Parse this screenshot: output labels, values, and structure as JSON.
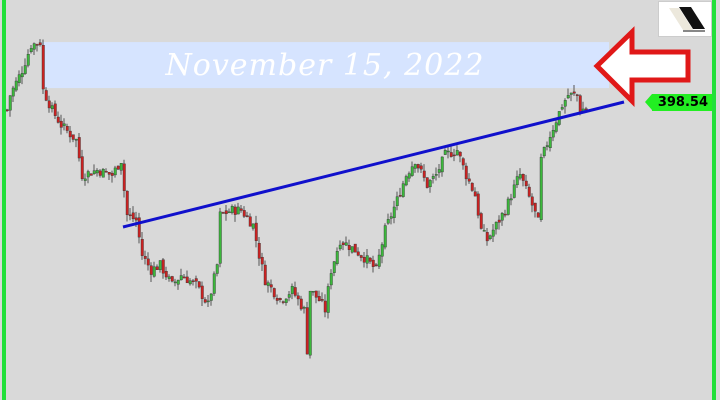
{
  "price_label": "398.54",
  "annotation_text": "November 15, 2022",
  "colors": {
    "background": "#d9d9d9",
    "up": "#3cb83c",
    "down": "#cc2222",
    "trendline": "#1010cc",
    "band": "#d6e4ff",
    "arrow": "#e01818",
    "border_lines": "#22e03a",
    "price_label": "#22ee22"
  },
  "chart_data": {
    "type": "candlestick",
    "title": "",
    "last_price": 398.54,
    "closes": [
      {
        "i": 2,
        "close": 395.3
      },
      {
        "i": 3,
        "close": 401.3
      },
      {
        "i": 7,
        "close": 411.3
      },
      {
        "i": 10,
        "close": 421.3
      },
      {
        "i": 13,
        "close": 422.5
      },
      {
        "i": 14,
        "close": 403.3
      },
      {
        "i": 17,
        "close": 395.3
      },
      {
        "i": 20,
        "close": 389.3
      },
      {
        "i": 25,
        "close": 383.3
      },
      {
        "i": 27,
        "close": 369.3
      },
      {
        "i": 32,
        "close": 371.3
      },
      {
        "i": 37,
        "close": 369.3
      },
      {
        "i": 40,
        "close": 375.3
      },
      {
        "i": 41,
        "close": 363.3
      },
      {
        "i": 42,
        "close": 353.3
      },
      {
        "i": 45,
        "close": 351.3
      },
      {
        "i": 47,
        "close": 337.3
      },
      {
        "i": 50,
        "close": 331.3
      },
      {
        "i": 53,
        "close": 333.3
      },
      {
        "i": 57,
        "close": 325.3
      },
      {
        "i": 60,
        "close": 329.3
      },
      {
        "i": 65,
        "close": 325.3
      },
      {
        "i": 69,
        "close": 317.3
      },
      {
        "i": 72,
        "close": 333.3
      },
      {
        "i": 73,
        "close": 353.3
      },
      {
        "i": 77,
        "close": 355.3
      },
      {
        "i": 80,
        "close": 355.3
      },
      {
        "i": 84,
        "close": 349.3
      },
      {
        "i": 86,
        "close": 337.3
      },
      {
        "i": 88,
        "close": 327.3
      },
      {
        "i": 93,
        "close": 319.3
      },
      {
        "i": 97,
        "close": 323.3
      },
      {
        "i": 101,
        "close": 315.3
      },
      {
        "i": 102,
        "close": 299.3
      },
      {
        "i": 103,
        "close": 323.3
      },
      {
        "i": 106,
        "close": 319.3
      },
      {
        "i": 108,
        "close": 315.3
      },
      {
        "i": 110,
        "close": 331.3
      },
      {
        "i": 113,
        "close": 343.3
      },
      {
        "i": 118,
        "close": 339.3
      },
      {
        "i": 122,
        "close": 335.3
      },
      {
        "i": 125,
        "close": 331.3
      },
      {
        "i": 128,
        "close": 347.3
      },
      {
        "i": 132,
        "close": 359.3
      },
      {
        "i": 135,
        "close": 369.3
      },
      {
        "i": 138,
        "close": 375.3
      },
      {
        "i": 142,
        "close": 365.3
      },
      {
        "i": 145,
        "close": 369.3
      },
      {
        "i": 148,
        "close": 377.3
      },
      {
        "i": 152,
        "close": 379.3
      },
      {
        "i": 155,
        "close": 369.3
      },
      {
        "i": 158,
        "close": 361.3
      },
      {
        "i": 160,
        "close": 347.3
      },
      {
        "i": 162,
        "close": 343.3
      },
      {
        "i": 165,
        "close": 349.3
      },
      {
        "i": 168,
        "close": 355.3
      },
      {
        "i": 172,
        "close": 367.3
      },
      {
        "i": 173,
        "close": 369.3
      },
      {
        "i": 177,
        "close": 357.3
      },
      {
        "i": 179,
        "close": 350.5
      },
      {
        "i": 180,
        "close": 375.3
      },
      {
        "i": 183,
        "close": 385.3
      },
      {
        "i": 187,
        "close": 397.3
      },
      {
        "i": 189,
        "close": 401.3
      },
      {
        "i": 192,
        "close": 401.3
      },
      {
        "i": 193,
        "close": 395.3
      },
      {
        "i": 195,
        "close": 396.1
      }
    ],
    "trendline": [
      {
        "i": 41,
        "price": 348.54
      },
      {
        "i": 208,
        "price": 398.54
      }
    ],
    "highlight_band": {
      "i_start": 14,
      "i_end": 203,
      "price_low": 404.1,
      "price_high": 422.5
    }
  }
}
